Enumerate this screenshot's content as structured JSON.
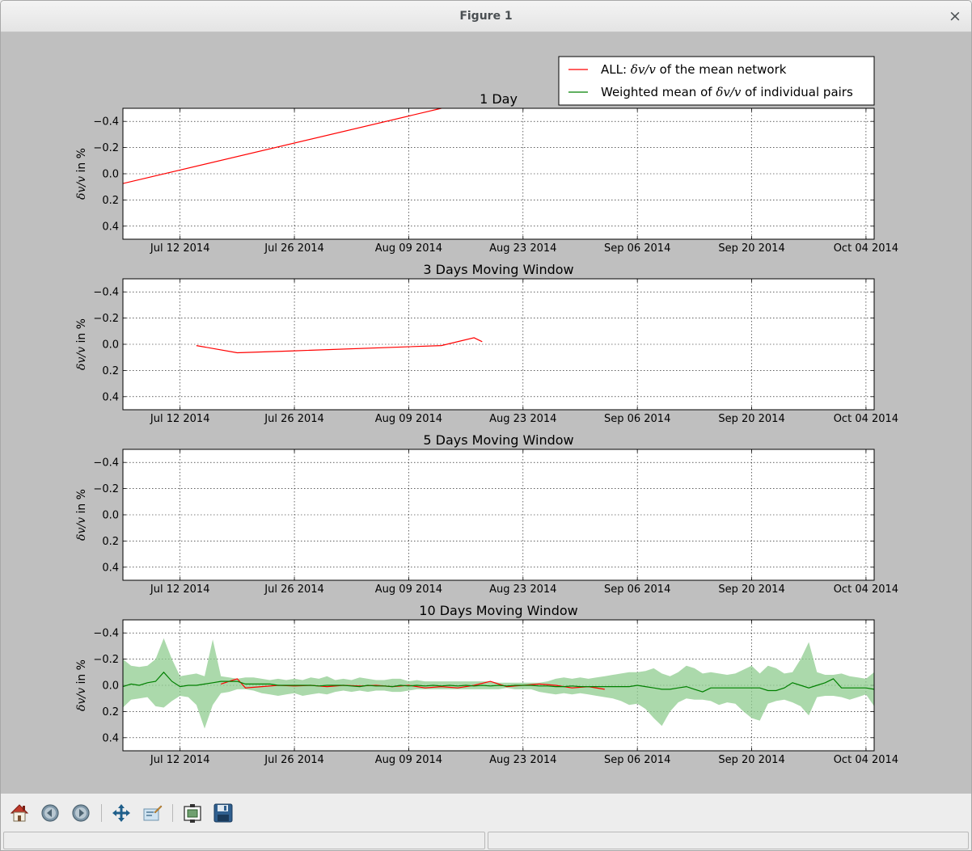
{
  "window": {
    "title": "Figure 1",
    "close_glyph": "×"
  },
  "toolbar": {
    "buttons": [
      {
        "name": "home-icon",
        "tooltip": "Reset original view"
      },
      {
        "name": "back-icon",
        "tooltip": "Back to previous view"
      },
      {
        "name": "forward-icon",
        "tooltip": "Forward to next view"
      },
      {
        "name": "pan-icon",
        "tooltip": "Pan axes"
      },
      {
        "name": "zoom-icon",
        "tooltip": "Zoom to rectangle"
      },
      {
        "name": "subplots-icon",
        "tooltip": "Configure subplots"
      },
      {
        "name": "save-icon",
        "tooltip": "Save the figure"
      }
    ]
  },
  "statusbar": {
    "left": "",
    "right": ""
  },
  "colors": {
    "all_series": "#ff0000",
    "pairs_series": "#008000",
    "pairs_band": "#8fcc8f",
    "figure_bg": "#bfbfbf",
    "axes_bg": "#ffffff"
  },
  "legend": {
    "entries": [
      {
        "series": "all",
        "prefix": "ALL: ",
        "math": "δv/v",
        "suffix": " of the mean network"
      },
      {
        "series": "pairs",
        "prefix": "Weighted mean of ",
        "math": "δv/v",
        "suffix": " of individual pairs"
      }
    ]
  },
  "chart_data": [
    {
      "type": "line",
      "title": "1 Day",
      "ylabel_math": "δv/v",
      "ylabel_text": " in %",
      "xlim": [
        "2014-07-05",
        "2014-10-05"
      ],
      "ylim": [
        0.5,
        -0.5
      ],
      "y_inverted": true,
      "grid": true,
      "xticks": [
        "Jul 12 2014",
        "Jul 26 2014",
        "Aug 09 2014",
        "Aug 23 2014",
        "Sep 06 2014",
        "Sep 20 2014",
        "Oct 04 2014"
      ],
      "yticks": [
        "−0.4",
        "−0.2",
        "0.0",
        "0.2",
        "0.4"
      ],
      "series": [
        {
          "key": "all",
          "x": [
            "2014-07-05",
            "2014-08-13"
          ],
          "y": [
            0.075,
            -0.5
          ]
        }
      ]
    },
    {
      "type": "line",
      "title": "3 Days Moving Window",
      "ylabel_math": "δv/v",
      "ylabel_text": " in %",
      "xlim": [
        "2014-07-05",
        "2014-10-05"
      ],
      "ylim": [
        0.5,
        -0.5
      ],
      "y_inverted": true,
      "grid": true,
      "xticks": [
        "Jul 12 2014",
        "Jul 26 2014",
        "Aug 09 2014",
        "Aug 23 2014",
        "Sep 06 2014",
        "Sep 20 2014",
        "Oct 04 2014"
      ],
      "yticks": [
        "−0.4",
        "−0.2",
        "0.0",
        "0.2",
        "0.4"
      ],
      "series": [
        {
          "key": "all",
          "x": [
            "2014-07-14",
            "2014-07-19",
            "2014-07-26",
            "2014-08-13",
            "2014-08-17",
            "2014-08-18"
          ],
          "y": [
            0.01,
            0.065,
            0.05,
            0.01,
            -0.05,
            -0.02
          ]
        }
      ]
    },
    {
      "type": "line",
      "title": "5 Days Moving Window",
      "ylabel_math": "δv/v",
      "ylabel_text": " in %",
      "xlim": [
        "2014-07-05",
        "2014-10-05"
      ],
      "ylim": [
        0.5,
        -0.5
      ],
      "y_inverted": true,
      "grid": true,
      "xticks": [
        "Jul 12 2014",
        "Jul 26 2014",
        "Aug 09 2014",
        "Aug 23 2014",
        "Sep 06 2014",
        "Sep 20 2014",
        "Oct 04 2014"
      ],
      "yticks": [
        "−0.4",
        "−0.2",
        "0.0",
        "0.2",
        "0.4"
      ],
      "series": []
    },
    {
      "type": "line",
      "title": "10 Days Moving Window",
      "ylabel_math": "δv/v",
      "ylabel_text": " in %",
      "xlim": [
        "2014-07-05",
        "2014-10-05"
      ],
      "ylim": [
        0.5,
        -0.5
      ],
      "y_inverted": true,
      "grid": true,
      "xticks": [
        "Jul 12 2014",
        "Jul 26 2014",
        "Aug 09 2014",
        "Aug 23 2014",
        "Sep 06 2014",
        "Sep 20 2014",
        "Oct 04 2014"
      ],
      "yticks": [
        "−0.4",
        "−0.2",
        "0.0",
        "0.2",
        "0.4"
      ],
      "series": [
        {
          "key": "all",
          "x": [
            "2014-07-17",
            "2014-07-18",
            "2014-07-19",
            "2014-07-20",
            "2014-07-22",
            "2014-07-24",
            "2014-07-26",
            "2014-07-28",
            "2014-07-30",
            "2014-08-01",
            "2014-08-03",
            "2014-08-05",
            "2014-08-07",
            "2014-08-09",
            "2014-08-11",
            "2014-08-13",
            "2014-08-15",
            "2014-08-17",
            "2014-08-19",
            "2014-08-21",
            "2014-08-23",
            "2014-08-25",
            "2014-08-27",
            "2014-08-29",
            "2014-08-31",
            "2014-09-02"
          ],
          "y": [
            -0.01,
            -0.03,
            -0.05,
            0.02,
            0.01,
            0.0,
            0.005,
            0.0,
            0.01,
            0.0,
            0.005,
            0.0,
            0.01,
            0.0,
            0.02,
            0.01,
            0.02,
            0.0,
            -0.03,
            0.01,
            0.0,
            -0.01,
            0.0,
            0.02,
            0.01,
            0.03
          ]
        },
        {
          "key": "pairs",
          "x": [
            "2014-07-05",
            "2014-07-06",
            "2014-07-07",
            "2014-07-08",
            "2014-07-09",
            "2014-07-10",
            "2014-07-11",
            "2014-07-12",
            "2014-07-13",
            "2014-07-14",
            "2014-07-15",
            "2014-07-16",
            "2014-07-17",
            "2014-07-18",
            "2014-07-19",
            "2014-07-20",
            "2014-07-21",
            "2014-07-22",
            "2014-07-23",
            "2014-07-24",
            "2014-07-25",
            "2014-07-26",
            "2014-07-27",
            "2014-07-28",
            "2014-07-29",
            "2014-07-30",
            "2014-07-31",
            "2014-08-01",
            "2014-08-02",
            "2014-08-03",
            "2014-08-04",
            "2014-08-05",
            "2014-08-06",
            "2014-08-07",
            "2014-08-08",
            "2014-08-09",
            "2014-08-10",
            "2014-08-11",
            "2014-08-12",
            "2014-08-13",
            "2014-08-14",
            "2014-08-15",
            "2014-08-16",
            "2014-08-17",
            "2014-08-18",
            "2014-08-19",
            "2014-08-20",
            "2014-08-21",
            "2014-08-22",
            "2014-08-23",
            "2014-08-24",
            "2014-08-25",
            "2014-08-26",
            "2014-08-27",
            "2014-08-28",
            "2014-08-29",
            "2014-08-30",
            "2014-08-31",
            "2014-09-01",
            "2014-09-02",
            "2014-09-03",
            "2014-09-04",
            "2014-09-05",
            "2014-09-06",
            "2014-09-07",
            "2014-09-08",
            "2014-09-09",
            "2014-09-10",
            "2014-09-11",
            "2014-09-12",
            "2014-09-13",
            "2014-09-14",
            "2014-09-15",
            "2014-09-16",
            "2014-09-17",
            "2014-09-18",
            "2014-09-19",
            "2014-09-20",
            "2014-09-21",
            "2014-09-22",
            "2014-09-23",
            "2014-09-24",
            "2014-09-25",
            "2014-09-26",
            "2014-09-27",
            "2014-09-28",
            "2014-09-29",
            "2014-09-30",
            "2014-10-01",
            "2014-10-02",
            "2014-10-03",
            "2014-10-04",
            "2014-10-05"
          ],
          "y": [
            0.01,
            -0.01,
            0.0,
            -0.02,
            -0.03,
            -0.1,
            -0.03,
            0.01,
            0.0,
            0.0,
            -0.01,
            -0.02,
            -0.03,
            -0.03,
            -0.03,
            -0.01,
            -0.01,
            -0.01,
            -0.01,
            0.0,
            0.0,
            0.0,
            0.0,
            0.0,
            0.005,
            0.0,
            0.0,
            0.0,
            0.005,
            0.01,
            0.0,
            0.005,
            0.005,
            0.01,
            0.0,
            0.005,
            0.0,
            0.005,
            0.0,
            0.005,
            0.0,
            0.005,
            0.0,
            0.005,
            0.0,
            0.005,
            0.0,
            0.005,
            0.0,
            0.0,
            0.0,
            0.005,
            0.005,
            0.01,
            0.01,
            0.005,
            0.01,
            0.01,
            0.01,
            0.01,
            0.01,
            0.01,
            0.01,
            0.0,
            0.01,
            0.02,
            0.03,
            0.03,
            0.02,
            0.01,
            0.03,
            0.05,
            0.02,
            0.02,
            0.02,
            0.02,
            0.02,
            0.02,
            0.02,
            0.04,
            0.04,
            0.02,
            -0.02,
            0.0,
            0.02,
            0.0,
            -0.02,
            -0.05,
            0.02,
            0.02,
            0.02,
            0.02,
            0.03
          ]
        }
      ],
      "band": {
        "key": "pairs",
        "x": [
          "2014-07-05",
          "2014-07-06",
          "2014-07-07",
          "2014-07-08",
          "2014-07-09",
          "2014-07-10",
          "2014-07-11",
          "2014-07-12",
          "2014-07-13",
          "2014-07-14",
          "2014-07-15",
          "2014-07-16",
          "2014-07-17",
          "2014-07-18",
          "2014-07-19",
          "2014-07-20",
          "2014-07-21",
          "2014-07-22",
          "2014-07-23",
          "2014-07-24",
          "2014-07-25",
          "2014-07-26",
          "2014-07-27",
          "2014-07-28",
          "2014-07-29",
          "2014-07-30",
          "2014-07-31",
          "2014-08-01",
          "2014-08-02",
          "2014-08-03",
          "2014-08-04",
          "2014-08-05",
          "2014-08-06",
          "2014-08-07",
          "2014-08-08",
          "2014-08-09",
          "2014-08-10",
          "2014-08-11",
          "2014-08-12",
          "2014-08-13",
          "2014-08-14",
          "2014-08-15",
          "2014-08-16",
          "2014-08-17",
          "2014-08-18",
          "2014-08-19",
          "2014-08-20",
          "2014-08-21",
          "2014-08-22",
          "2014-08-23",
          "2014-08-24",
          "2014-08-25",
          "2014-08-26",
          "2014-08-27",
          "2014-08-28",
          "2014-08-29",
          "2014-08-30",
          "2014-08-31",
          "2014-09-01",
          "2014-09-02",
          "2014-09-03",
          "2014-09-04",
          "2014-09-05",
          "2014-09-06",
          "2014-09-07",
          "2014-09-08",
          "2014-09-09",
          "2014-09-10",
          "2014-09-11",
          "2014-09-12",
          "2014-09-13",
          "2014-09-14",
          "2014-09-15",
          "2014-09-16",
          "2014-09-17",
          "2014-09-18",
          "2014-09-19",
          "2014-09-20",
          "2014-09-21",
          "2014-09-22",
          "2014-09-23",
          "2014-09-24",
          "2014-09-25",
          "2014-09-26",
          "2014-09-27",
          "2014-09-28",
          "2014-09-29",
          "2014-09-30",
          "2014-10-01",
          "2014-10-02",
          "2014-10-03",
          "2014-10-04",
          "2014-10-05"
        ],
        "lower": [
          -0.2,
          -0.15,
          -0.14,
          -0.15,
          -0.2,
          -0.36,
          -0.2,
          -0.07,
          -0.08,
          -0.09,
          -0.07,
          -0.35,
          -0.07,
          -0.06,
          -0.05,
          -0.06,
          -0.06,
          -0.05,
          -0.04,
          -0.05,
          -0.04,
          -0.05,
          -0.04,
          -0.06,
          -0.05,
          -0.07,
          -0.04,
          -0.05,
          -0.04,
          -0.06,
          -0.05,
          -0.04,
          -0.04,
          -0.05,
          -0.05,
          -0.03,
          -0.04,
          -0.03,
          -0.03,
          -0.03,
          -0.03,
          -0.03,
          -0.03,
          -0.03,
          -0.03,
          -0.03,
          -0.02,
          -0.02,
          -0.02,
          -0.02,
          -0.02,
          -0.02,
          -0.03,
          -0.05,
          -0.06,
          -0.05,
          -0.06,
          -0.05,
          -0.06,
          -0.07,
          -0.08,
          -0.09,
          -0.1,
          -0.1,
          -0.11,
          -0.13,
          -0.09,
          -0.07,
          -0.1,
          -0.15,
          -0.13,
          -0.09,
          -0.1,
          -0.09,
          -0.08,
          -0.09,
          -0.12,
          -0.15,
          -0.09,
          -0.15,
          -0.13,
          -0.09,
          -0.1,
          -0.2,
          -0.33,
          -0.1,
          -0.08,
          -0.08,
          -0.09,
          -0.07,
          -0.06,
          -0.05,
          -0.1
        ],
        "upper": [
          0.17,
          0.11,
          0.1,
          0.09,
          0.16,
          0.17,
          0.12,
          0.08,
          0.09,
          0.15,
          0.33,
          0.15,
          0.06,
          0.05,
          0.03,
          0.03,
          0.04,
          0.06,
          0.07,
          0.08,
          0.07,
          0.06,
          0.08,
          0.07,
          0.06,
          0.07,
          0.05,
          0.04,
          0.05,
          0.04,
          0.05,
          0.04,
          0.04,
          0.05,
          0.05,
          0.04,
          0.03,
          0.03,
          0.03,
          0.03,
          0.03,
          0.03,
          0.03,
          0.03,
          0.03,
          0.03,
          0.03,
          0.02,
          0.03,
          0.03,
          0.03,
          0.05,
          0.06,
          0.07,
          0.06,
          0.07,
          0.06,
          0.07,
          0.08,
          0.09,
          0.1,
          0.12,
          0.15,
          0.14,
          0.18,
          0.25,
          0.31,
          0.2,
          0.13,
          0.1,
          0.11,
          0.11,
          0.12,
          0.15,
          0.13,
          0.14,
          0.2,
          0.25,
          0.27,
          0.14,
          0.12,
          0.11,
          0.13,
          0.16,
          0.23,
          0.09,
          0.08,
          0.08,
          0.09,
          0.11,
          0.09,
          0.07,
          0.16
        ]
      }
    }
  ]
}
